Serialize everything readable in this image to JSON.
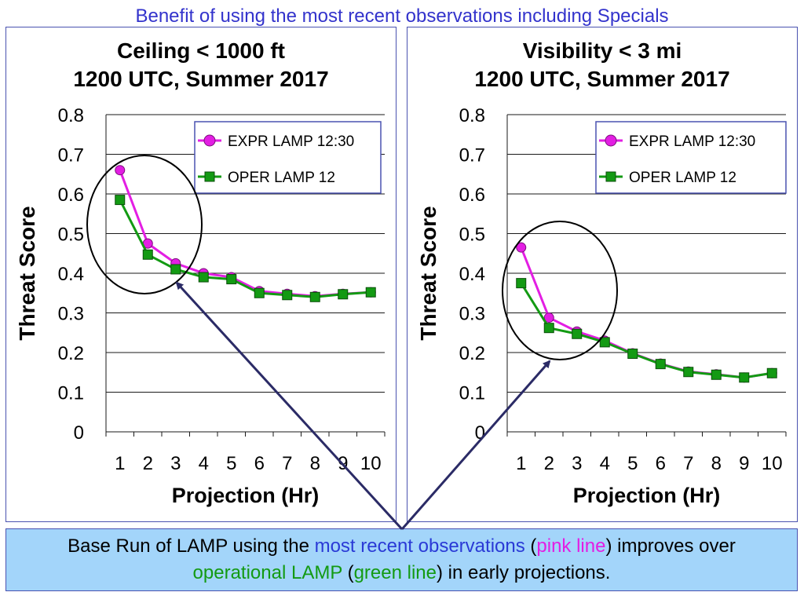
{
  "slide_title": "Benefit of using the most recent observations including Specials",
  "colors": {
    "pink": "#e31ee3",
    "green": "#139a13",
    "title_blue": "#3333cc",
    "caption_bg": "#a3d5fa",
    "arrow": "#2b2b66"
  },
  "panels": [
    {
      "title_line1": "Ceiling < 1000 ft",
      "title_line2": "1200 UTC, Summer 2017"
    },
    {
      "title_line1": "Visibility < 3 mi",
      "title_line2": "1200 UTC, Summer 2017"
    }
  ],
  "caption": {
    "part1": "Base Run of LAMP using the ",
    "recent_obs": "most recent observations",
    "part2": " (",
    "pink_line": "pink line",
    "part3": ") improves over ",
    "operational": "operational LAMP",
    "part4": " (",
    "green_line": "green line",
    "part5": ") in early projections."
  },
  "chart_data": [
    {
      "type": "line",
      "title": "Ceiling < 1000 ft 1200 UTC, Summer 2017",
      "xlabel": "Projection (Hr)",
      "ylabel": "Threat Score",
      "categories": [
        "1",
        "2",
        "3",
        "4",
        "5",
        "6",
        "7",
        "8",
        "9",
        "10"
      ],
      "ylim": [
        0,
        0.8
      ],
      "yticks": [
        "0",
        "0.1",
        "0.2",
        "0.3",
        "0.4",
        "0.5",
        "0.6",
        "0.7",
        "0.8"
      ],
      "grid": true,
      "legend": "top-right",
      "series": [
        {
          "name": "EXPR LAMP 12:30",
          "marker": "circle",
          "color": "#e31ee3",
          "values": [
            0.66,
            0.475,
            0.425,
            0.4,
            0.39,
            0.355,
            0.348,
            0.342,
            0.348,
            0.352
          ]
        },
        {
          "name": "OPER LAMP 12",
          "marker": "square",
          "color": "#139a13",
          "values": [
            0.585,
            0.447,
            0.41,
            0.39,
            0.385,
            0.35,
            0.345,
            0.34,
            0.347,
            0.352
          ]
        }
      ]
    },
    {
      "type": "line",
      "title": "Visibility < 3 mi 1200 UTC, Summer 2017",
      "xlabel": "Projection (Hr)",
      "ylabel": "Threat Score",
      "categories": [
        "1",
        "2",
        "3",
        "4",
        "5",
        "6",
        "7",
        "8",
        "9",
        "10"
      ],
      "ylim": [
        0,
        0.8
      ],
      "yticks": [
        "0",
        "0.1",
        "0.2",
        "0.3",
        "0.4",
        "0.5",
        "0.6",
        "0.7",
        "0.8"
      ],
      "grid": true,
      "legend": "top-right",
      "series": [
        {
          "name": "EXPR LAMP 12:30",
          "marker": "circle",
          "color": "#e31ee3",
          "values": [
            0.465,
            0.288,
            0.253,
            0.23,
            0.198,
            0.172,
            0.152,
            0.145,
            0.137,
            0.148
          ]
        },
        {
          "name": "OPER LAMP 12",
          "marker": "square",
          "color": "#139a13",
          "values": [
            0.375,
            0.262,
            0.247,
            0.226,
            0.197,
            0.171,
            0.151,
            0.144,
            0.137,
            0.148
          ]
        }
      ]
    }
  ]
}
